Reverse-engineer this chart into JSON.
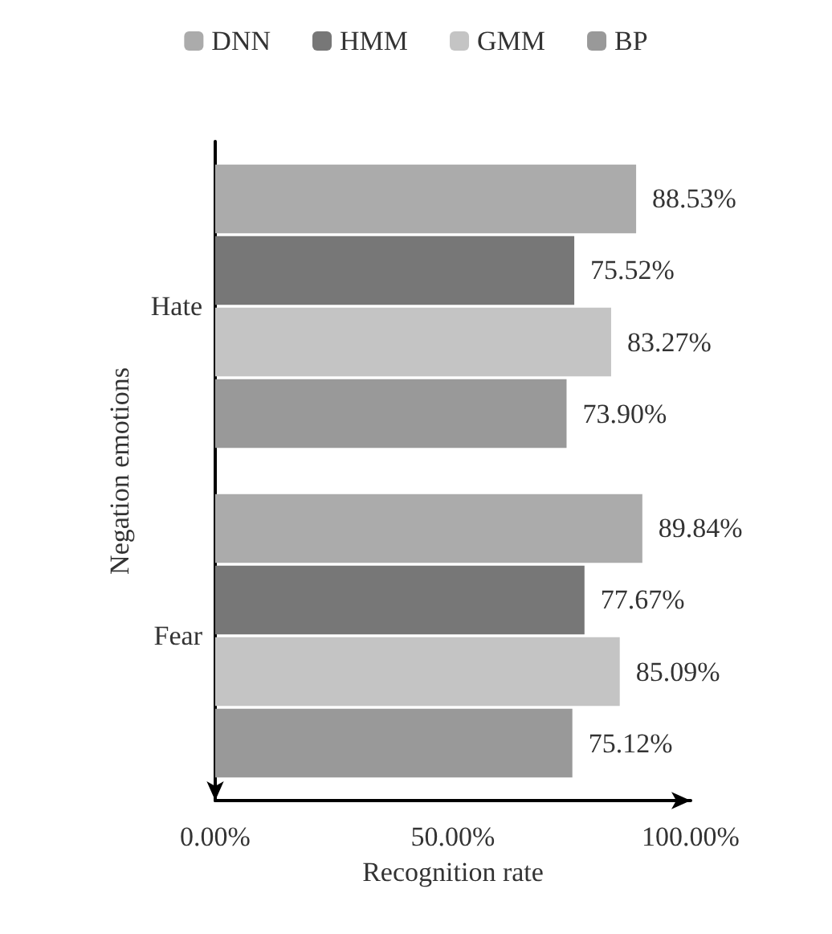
{
  "chart_data": {
    "type": "bar",
    "orientation": "horizontal",
    "xlabel": "Recognition rate",
    "ylabel": "Negation emotions",
    "categories": [
      "Hate",
      "Fear"
    ],
    "series": [
      {
        "name": "DNN",
        "color": "#ababab",
        "values": [
          88.53,
          89.84
        ],
        "value_labels": [
          "88.53%",
          "89.84%"
        ]
      },
      {
        "name": "HMM",
        "color": "#777777",
        "values": [
          75.52,
          77.67
        ],
        "value_labels": [
          "75.52%",
          "77.67%"
        ]
      },
      {
        "name": "GMM",
        "color": "#c4c4c4",
        "values": [
          83.27,
          85.09
        ],
        "value_labels": [
          "83.27%",
          "85.09%"
        ]
      },
      {
        "name": "BP",
        "color": "#999999",
        "values": [
          73.9,
          75.12
        ],
        "value_labels": [
          "73.90%",
          "75.12%"
        ]
      }
    ],
    "xlim": [
      0,
      100
    ],
    "xticks": [
      {
        "value": 0,
        "label": "0.00%"
      },
      {
        "value": 50,
        "label": "50.00%"
      },
      {
        "value": 100,
        "label": "100.00%"
      }
    ],
    "grid": false,
    "legend": "top"
  }
}
